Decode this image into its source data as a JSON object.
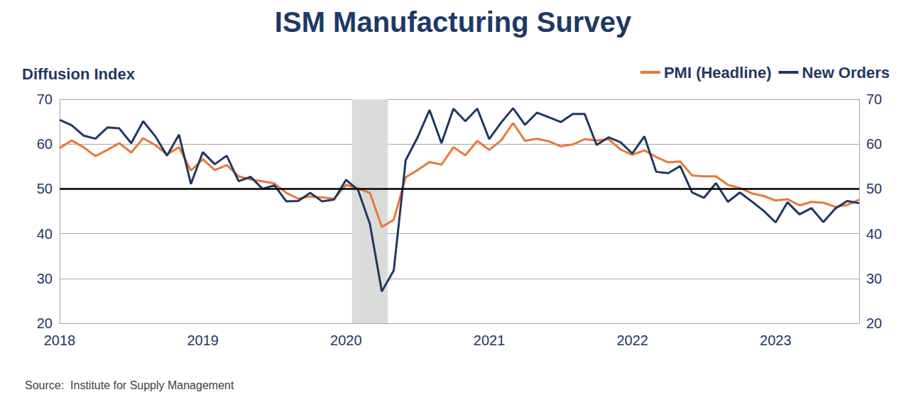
{
  "chart_data": {
    "type": "line",
    "title": "ISM Manufacturing Survey",
    "y_label": "Diffusion Index",
    "source": "Source:  Institute for Supply Management",
    "categories": [
      "2018",
      null,
      null,
      null,
      null,
      null,
      null,
      null,
      null,
      null,
      null,
      null,
      "2019",
      null,
      null,
      null,
      null,
      null,
      null,
      null,
      null,
      null,
      null,
      null,
      "2020",
      null,
      null,
      null,
      null,
      null,
      null,
      null,
      null,
      null,
      null,
      null,
      "2021",
      null,
      null,
      null,
      null,
      null,
      null,
      null,
      null,
      null,
      null,
      null,
      "2022",
      null,
      null,
      null,
      null,
      null,
      null,
      null,
      null,
      null,
      null,
      null,
      "2023",
      null,
      null,
      null,
      null,
      null,
      null,
      null
    ],
    "series": [
      {
        "name": "PMI (Headline)",
        "color": "#e8783a",
        "values": [
          59.1,
          60.8,
          59.3,
          57.3,
          58.7,
          60.2,
          58.1,
          61.3,
          59.8,
          57.7,
          59.3,
          54.1,
          56.6,
          54.2,
          55.3,
          52.8,
          52.1,
          51.7,
          51.2,
          49.1,
          47.8,
          48.3,
          48.1,
          47.8,
          50.9,
          50.1,
          49.1,
          41.5,
          43.1,
          52.6,
          54.2,
          56.0,
          55.4,
          59.3,
          57.5,
          60.7,
          58.7,
          60.8,
          64.7,
          60.7,
          61.2,
          60.6,
          59.5,
          59.9,
          61.1,
          60.8,
          61.1,
          58.8,
          57.6,
          58.6,
          57.1,
          55.9,
          56.1,
          53.0,
          52.8,
          52.8,
          50.9,
          50.2,
          49.0,
          48.4,
          47.4,
          47.7,
          46.3,
          47.1,
          46.9,
          46.0,
          46.4,
          47.6
        ]
      },
      {
        "name": "New Orders",
        "color": "#1f3864",
        "values": [
          65.4,
          64.2,
          61.9,
          61.2,
          63.7,
          63.5,
          60.2,
          65.1,
          61.8,
          57.4,
          62.1,
          51.1,
          58.2,
          55.5,
          57.4,
          51.7,
          52.7,
          50.0,
          50.8,
          47.2,
          47.3,
          49.1,
          47.2,
          47.6,
          52.0,
          49.8,
          42.2,
          27.1,
          31.8,
          56.4,
          61.5,
          67.6,
          60.2,
          67.9,
          65.1,
          67.9,
          61.1,
          64.8,
          68.0,
          64.3,
          67.0,
          66.0,
          64.9,
          66.7,
          66.7,
          59.8,
          61.5,
          60.4,
          57.9,
          61.7,
          53.8,
          53.5,
          55.1,
          49.2,
          48.0,
          51.3,
          47.1,
          49.2,
          47.2,
          45.1,
          42.5,
          47.0,
          44.3,
          45.7,
          42.6,
          45.6,
          47.3,
          46.8
        ]
      }
    ],
    "ylim": [
      20,
      70
    ],
    "yticks": [
      20,
      30,
      40,
      50,
      60,
      70
    ],
    "y2lim": [
      20,
      70
    ],
    "y2ticks": [
      20,
      30,
      40,
      50,
      60,
      70
    ],
    "reference_line": 50,
    "shaded_range": [
      24.5,
      27.5
    ],
    "grid": true,
    "legend": "top-right"
  }
}
